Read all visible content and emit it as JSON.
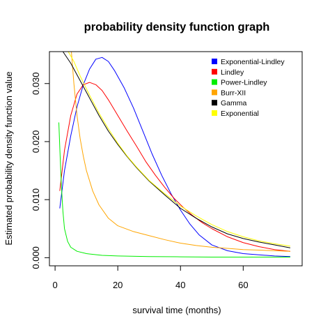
{
  "chart_data": {
    "type": "line",
    "title": "probability density function graph",
    "xlabel": "survival time (months)",
    "ylabel": "Estimated probability density function value",
    "xlim": [
      -1.8,
      78.8
    ],
    "ylim": [
      -0.0014,
      0.0355
    ],
    "xticks": [
      0,
      20,
      40,
      60
    ],
    "yticks": [
      0.0,
      0.01,
      0.02,
      0.03
    ],
    "ytick_labels": [
      "0.000",
      "0.010",
      "0.020",
      "0.030"
    ],
    "grid": false,
    "legend_position": "top-right",
    "series": [
      {
        "name": "Exponential-Lindley",
        "color": "#0000ff",
        "x": [
          1.5,
          3,
          5,
          7,
          9,
          11,
          13,
          15,
          17,
          19,
          22,
          25,
          28,
          31,
          34,
          37,
          40,
          43,
          46,
          50,
          55,
          60,
          65,
          70,
          75
        ],
        "y": [
          0.0085,
          0.015,
          0.021,
          0.026,
          0.0298,
          0.0325,
          0.0342,
          0.0345,
          0.0338,
          0.0322,
          0.0293,
          0.0258,
          0.0218,
          0.0178,
          0.0142,
          0.011,
          0.0082,
          0.0058,
          0.0039,
          0.0022,
          0.0012,
          0.0007,
          0.0005,
          0.0003,
          0.0002
        ]
      },
      {
        "name": "Lindley",
        "color": "#ff0000",
        "x": [
          1.5,
          3,
          5,
          7,
          9,
          11,
          13,
          15,
          17,
          20,
          23,
          26,
          29,
          32,
          35,
          38,
          41,
          44,
          47,
          50,
          55,
          60,
          65,
          70,
          75
        ],
        "y": [
          0.0115,
          0.0185,
          0.0245,
          0.0282,
          0.0298,
          0.0302,
          0.0298,
          0.0288,
          0.0272,
          0.0245,
          0.0218,
          0.0192,
          0.0165,
          0.0142,
          0.0121,
          0.0102,
          0.0086,
          0.0072,
          0.006,
          0.005,
          0.0036,
          0.0026,
          0.0019,
          0.0014,
          0.0011
        ]
      },
      {
        "name": "Power-Lindley",
        "color": "#00ee00",
        "x": [
          1.2,
          1.5,
          2,
          2.5,
          3,
          4,
          5,
          7,
          10,
          15,
          20,
          30,
          40,
          50,
          60,
          75
        ],
        "y": [
          0.0233,
          0.019,
          0.0125,
          0.008,
          0.005,
          0.0028,
          0.0018,
          0.0011,
          0.0007,
          0.0004,
          0.0003,
          0.0002,
          0.00015,
          0.0001,
          0.0001,
          0.0001
        ]
      },
      {
        "name": "Burr-XII",
        "color": "#ffa500",
        "x": [
          5.2,
          6,
          7,
          8,
          9,
          10,
          12,
          14,
          17,
          20,
          25,
          30,
          35,
          40,
          45,
          50,
          55,
          60,
          65,
          70,
          75
        ],
        "y": [
          0.0355,
          0.03,
          0.0245,
          0.0205,
          0.0175,
          0.015,
          0.0115,
          0.0091,
          0.0068,
          0.0055,
          0.0045,
          0.0038,
          0.0031,
          0.0025,
          0.0021,
          0.0018,
          0.0016,
          0.0014,
          0.0013,
          0.0012,
          0.0011
        ]
      },
      {
        "name": "Gamma",
        "color": "#000000",
        "x": [
          2.5,
          5,
          8,
          11,
          14,
          17,
          20,
          23,
          26,
          30,
          35,
          40,
          45,
          50,
          55,
          60,
          65,
          70,
          75
        ],
        "y": [
          0.0355,
          0.0335,
          0.0305,
          0.0275,
          0.0245,
          0.0218,
          0.0195,
          0.0174,
          0.0155,
          0.0132,
          0.0108,
          0.0085,
          0.0068,
          0.0053,
          0.0041,
          0.0033,
          0.0027,
          0.0022,
          0.0017
        ]
      },
      {
        "name": "Exponential",
        "color": "#ffff00",
        "x": [
          4.2,
          6,
          8,
          11,
          14,
          17,
          20,
          23,
          26,
          30,
          35,
          40,
          45,
          50,
          55,
          60,
          65,
          70,
          75
        ],
        "y": [
          0.0355,
          0.0338,
          0.0313,
          0.028,
          0.0249,
          0.0222,
          0.0197,
          0.0175,
          0.0156,
          0.0133,
          0.011,
          0.0089,
          0.0072,
          0.0057,
          0.0045,
          0.0036,
          0.0029,
          0.0024,
          0.002
        ]
      }
    ]
  }
}
